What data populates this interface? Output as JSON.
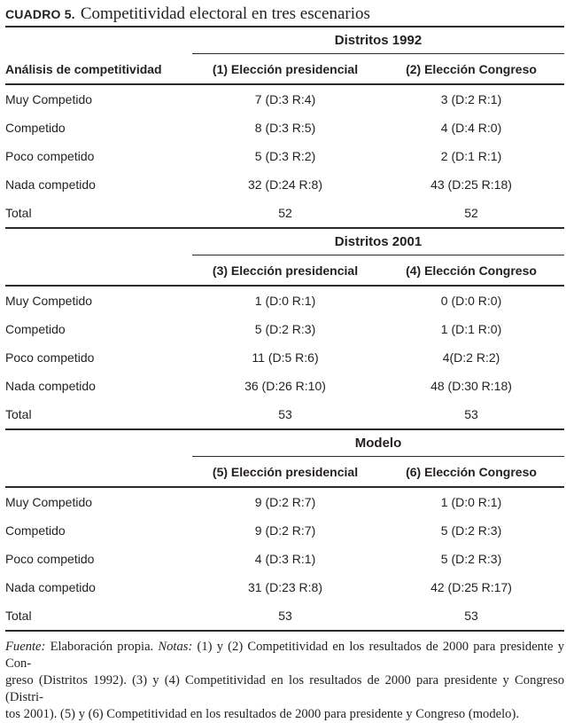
{
  "title": {
    "label": "CUADRO 5.",
    "text": "Competitividad electoral en tres escenarios"
  },
  "row_header": "Análisis de competitividad",
  "sections": [
    {
      "group": "Distritos 1992",
      "columns": [
        "(1) Elección presidencial",
        "(2) Elección Congreso"
      ],
      "rows": [
        {
          "label": "Muy Competido",
          "col1": "7 (D:3 R:4)",
          "col2": "3 (D:2 R:1)"
        },
        {
          "label": "Competido",
          "col1": "8 (D:3 R:5)",
          "col2": "4 (D:4 R:0)"
        },
        {
          "label": "Poco competido",
          "col1": "5 (D:3 R:2)",
          "col2": "2 (D:1 R:1)"
        },
        {
          "label": "Nada competido",
          "col1": "32 (D:24 R:8)",
          "col2": "43 (D:25 R:18)"
        },
        {
          "label": "Total",
          "col1": "52",
          "col2": "52"
        }
      ]
    },
    {
      "group": "Distritos 2001",
      "columns": [
        "(3) Elección presidencial",
        "(4) Elección Congreso"
      ],
      "rows": [
        {
          "label": "Muy Competido",
          "col1": "1 (D:0 R:1)",
          "col2": "0 (D:0 R:0)"
        },
        {
          "label": "Competido",
          "col1": "5 (D:2 R:3)",
          "col2": "1 (D:1 R:0)"
        },
        {
          "label": "Poco competido",
          "col1": "11 (D:5 R:6)",
          "col2": "4(D:2 R:2)"
        },
        {
          "label": "Nada competido",
          "col1": "36 (D:26 R:10)",
          "col2": "48 (D:30 R:18)"
        },
        {
          "label": "Total",
          "col1": "53",
          "col2": "53"
        }
      ]
    },
    {
      "group": "Modelo",
      "columns": [
        "(5) Elección presidencial",
        "(6) Elección Congreso"
      ],
      "rows": [
        {
          "label": "Muy Competido",
          "col1": "9 (D:2 R:7)",
          "col2": "1 (D:0 R:1)"
        },
        {
          "label": "Competido",
          "col1": "9 (D:2 R:7)",
          "col2": "5 (D:2 R:3)"
        },
        {
          "label": "Poco competido",
          "col1": "4 (D:3 R:1)",
          "col2": "5 (D:2 R:3)"
        },
        {
          "label": "Nada competido",
          "col1": "31 (D:23 R:8)",
          "col2": "42 (D:25 R:17)"
        },
        {
          "label": "Total",
          "col1": "53",
          "col2": "53"
        }
      ]
    }
  ],
  "footnote": {
    "fuente_label": "Fuente:",
    "line1_a": " Elaboración propia. ",
    "notas_label": "Notas:",
    "line1_b": " (1) y (2) Competitividad en los resultados de 2000 para presidente y Con-",
    "line2": "greso (Distritos 1992). (3) y (4) Competitividad en los resultados de 2000 para presidente y Congreso (Distri-",
    "line3": "tos 2001). (5) y (6) Competitividad en los resultados de 2000 para presidente y Congreso (modelo)."
  },
  "colors": {
    "text": "#231f20",
    "rule": "#2b2a29",
    "background": "#ffffff"
  }
}
